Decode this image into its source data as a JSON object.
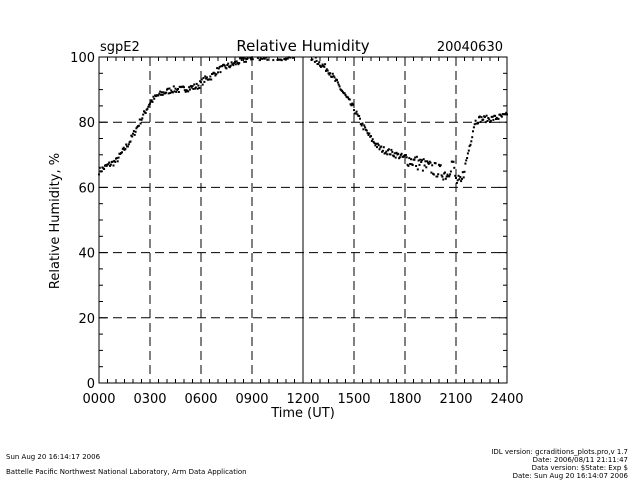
{
  "chart_data": {
    "type": "scatter",
    "title": "Relative Humidity",
    "site": "sgpE2",
    "date": "20040630",
    "xlabel": "Time (UT)",
    "ylabel": "Relative Humidity, %",
    "xlim": [
      0,
      2400
    ],
    "ylim": [
      0,
      100
    ],
    "xticks": [
      "0000",
      "0300",
      "0600",
      "0900",
      "1200",
      "1500",
      "1800",
      "2100",
      "2400"
    ],
    "yticks": [
      "0",
      "20",
      "40",
      "60",
      "80",
      "100"
    ],
    "grid": true,
    "series": [
      {
        "name": "Relative Humidity",
        "anchors_x_hours": [
          0.0,
          0.3,
          0.6,
          1.0,
          1.4,
          1.8,
          2.2,
          2.6,
          3.0,
          3.4,
          3.8,
          4.3,
          4.8,
          5.3,
          5.8,
          6.2,
          6.6,
          7.0,
          7.5,
          8.0,
          8.5,
          9.0,
          9.5,
          10.0,
          10.5,
          11.0,
          11.5,
          12.5,
          13.0,
          13.5,
          14.0,
          14.5,
          15.0,
          15.5,
          16.0,
          16.5,
          17.0,
          17.5,
          18.0,
          18.5,
          19.0,
          19.5,
          20.0,
          20.5,
          20.8,
          21.0,
          21.3,
          21.6,
          21.9,
          22.1,
          22.4,
          23.0,
          24.0
        ],
        "anchors_y": [
          65,
          66,
          67,
          68,
          71,
          74,
          78,
          82,
          86,
          88,
          89,
          90,
          90,
          90.5,
          91,
          93,
          94,
          96,
          97,
          98,
          99,
          100,
          100,
          100,
          100,
          100,
          100,
          100,
          98,
          96,
          92,
          88,
          84,
          79,
          75,
          72,
          71,
          70,
          69,
          68,
          67,
          66,
          65,
          64,
          68,
          62,
          61,
          68,
          75,
          80,
          81,
          81,
          82
        ],
        "jitter": 1.0
      }
    ]
  },
  "footer": {
    "left_line1": "Sun Aug 20 16:14:17 2006",
    "left_line2": "Battelle Pacific Northwest National Laboratory, Arm Data Application",
    "right_line1": "IDL version: gcraditions_plots.pro,v 1.7",
    "right_line2": "Date: 2006/08/11 21:11:47",
    "right_line3": "Data version: $State: Exp $",
    "right_line4": "Date: Sun Aug 20 16:14:07 2006"
  }
}
